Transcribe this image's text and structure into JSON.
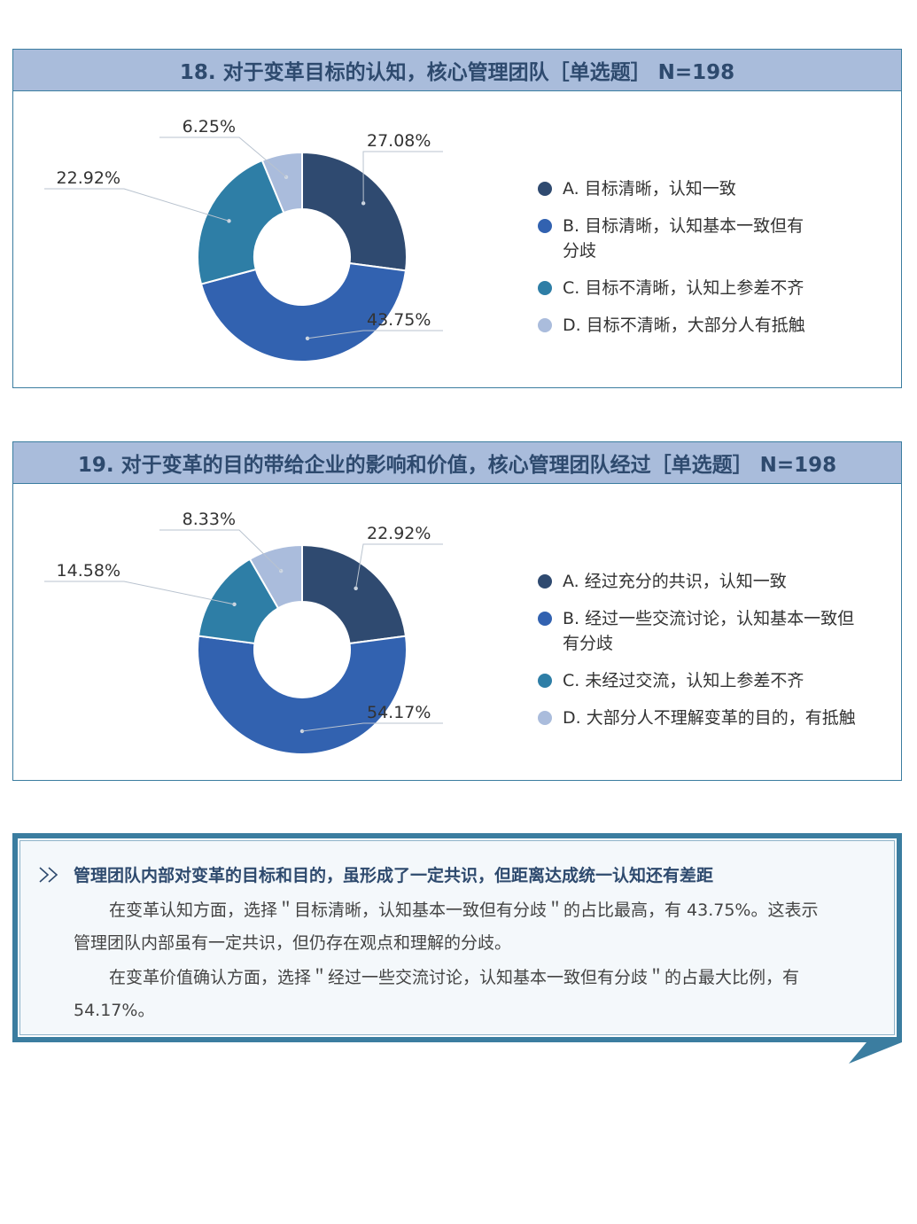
{
  "charts": [
    {
      "title": "18. 对于变革目标的认知，核心管理团队［单选题］ N=198",
      "slices": [
        {
          "value": 27.08,
          "label": "27.08%",
          "legend": "A. 目标清晰，认知一致",
          "color": "#2f4a70"
        },
        {
          "value": 43.75,
          "label": "43.75%",
          "legend": "B. 目标清晰，认知基本一致但有分歧",
          "legend_lines": [
            "B. 目标清晰，认知基本一致但有",
            "分歧"
          ],
          "color": "#3262b0"
        },
        {
          "value": 22.92,
          "label": "22.92%",
          "legend": "C. 目标不清晰，认知上参差不齐",
          "color": "#2e7ea6"
        },
        {
          "value": 6.25,
          "label": "6.25%",
          "legend": "D. 目标不清晰，大部分人有抵触",
          "color": "#aabcdc"
        }
      ]
    },
    {
      "title": "19. 对于变革的目的带给企业的影响和价值，核心管理团队经过［单选题］ N=198",
      "slices": [
        {
          "value": 22.92,
          "label": "22.92%",
          "legend": "A. 经过充分的共识，认知一致",
          "color": "#2f4a70"
        },
        {
          "value": 54.17,
          "label": "54.17%",
          "legend": "B. 经过一些交流讨论，认知基本一致但有分歧",
          "legend_lines": [
            "B. 经过一些交流讨论，认知基本一致但",
            "有分歧"
          ],
          "color": "#3262b0"
        },
        {
          "value": 14.58,
          "label": "14.58%",
          "legend": "C. 未经过交流，认知上参差不齐",
          "color": "#2e7ea6"
        },
        {
          "value": 8.33,
          "label": "8.33%",
          "legend": "D. 大部分人不理解变革的目的，有抵触",
          "color": "#aabcdc"
        }
      ]
    }
  ],
  "chart_data": [
    {
      "type": "pie",
      "title": "18. 对于变革目标的认知，核心管理团队［单选题］ N=198",
      "categories": [
        "A. 目标清晰，认知一致",
        "B. 目标清晰，认知基本一致但有分歧",
        "C. 目标不清晰，认知上参差不齐",
        "D. 目标不清晰，大部分人有抵触"
      ],
      "values": [
        27.08,
        43.75,
        22.92,
        6.25
      ],
      "legend": "right"
    },
    {
      "type": "pie",
      "title": "19. 对于变革的目的带给企业的影响和价值，核心管理团队经过［单选题］ N=198",
      "categories": [
        "A. 经过充分的共识，认知一致",
        "B. 经过一些交流讨论，认知基本一致但有分歧",
        "C. 未经过交流，认知上参差不齐",
        "D. 大部分人不理解变革的目的，有抵触"
      ],
      "values": [
        22.92,
        54.17,
        14.58,
        8.33
      ],
      "legend": "right"
    }
  ],
  "conclusion": {
    "heading": "管理团队内部对变革的目标和目的，虽形成了一定共识，但距离达成统一认知还有差距",
    "para1_line1": "在变革认知方面，选择＂目标清晰，认知基本一致但有分歧＂的占比最高，有 43.75%。这表示",
    "para1_line2": "管理团队内部虽有一定共识，但仍存在观点和理解的分歧。",
    "para2_line1": "在变革价值确认方面，选择＂经过一些交流讨论，认知基本一致但有分歧＂的占最大比例，有",
    "para2_line2": "54.17%。",
    "icon": "double-chevron-right-icon"
  }
}
